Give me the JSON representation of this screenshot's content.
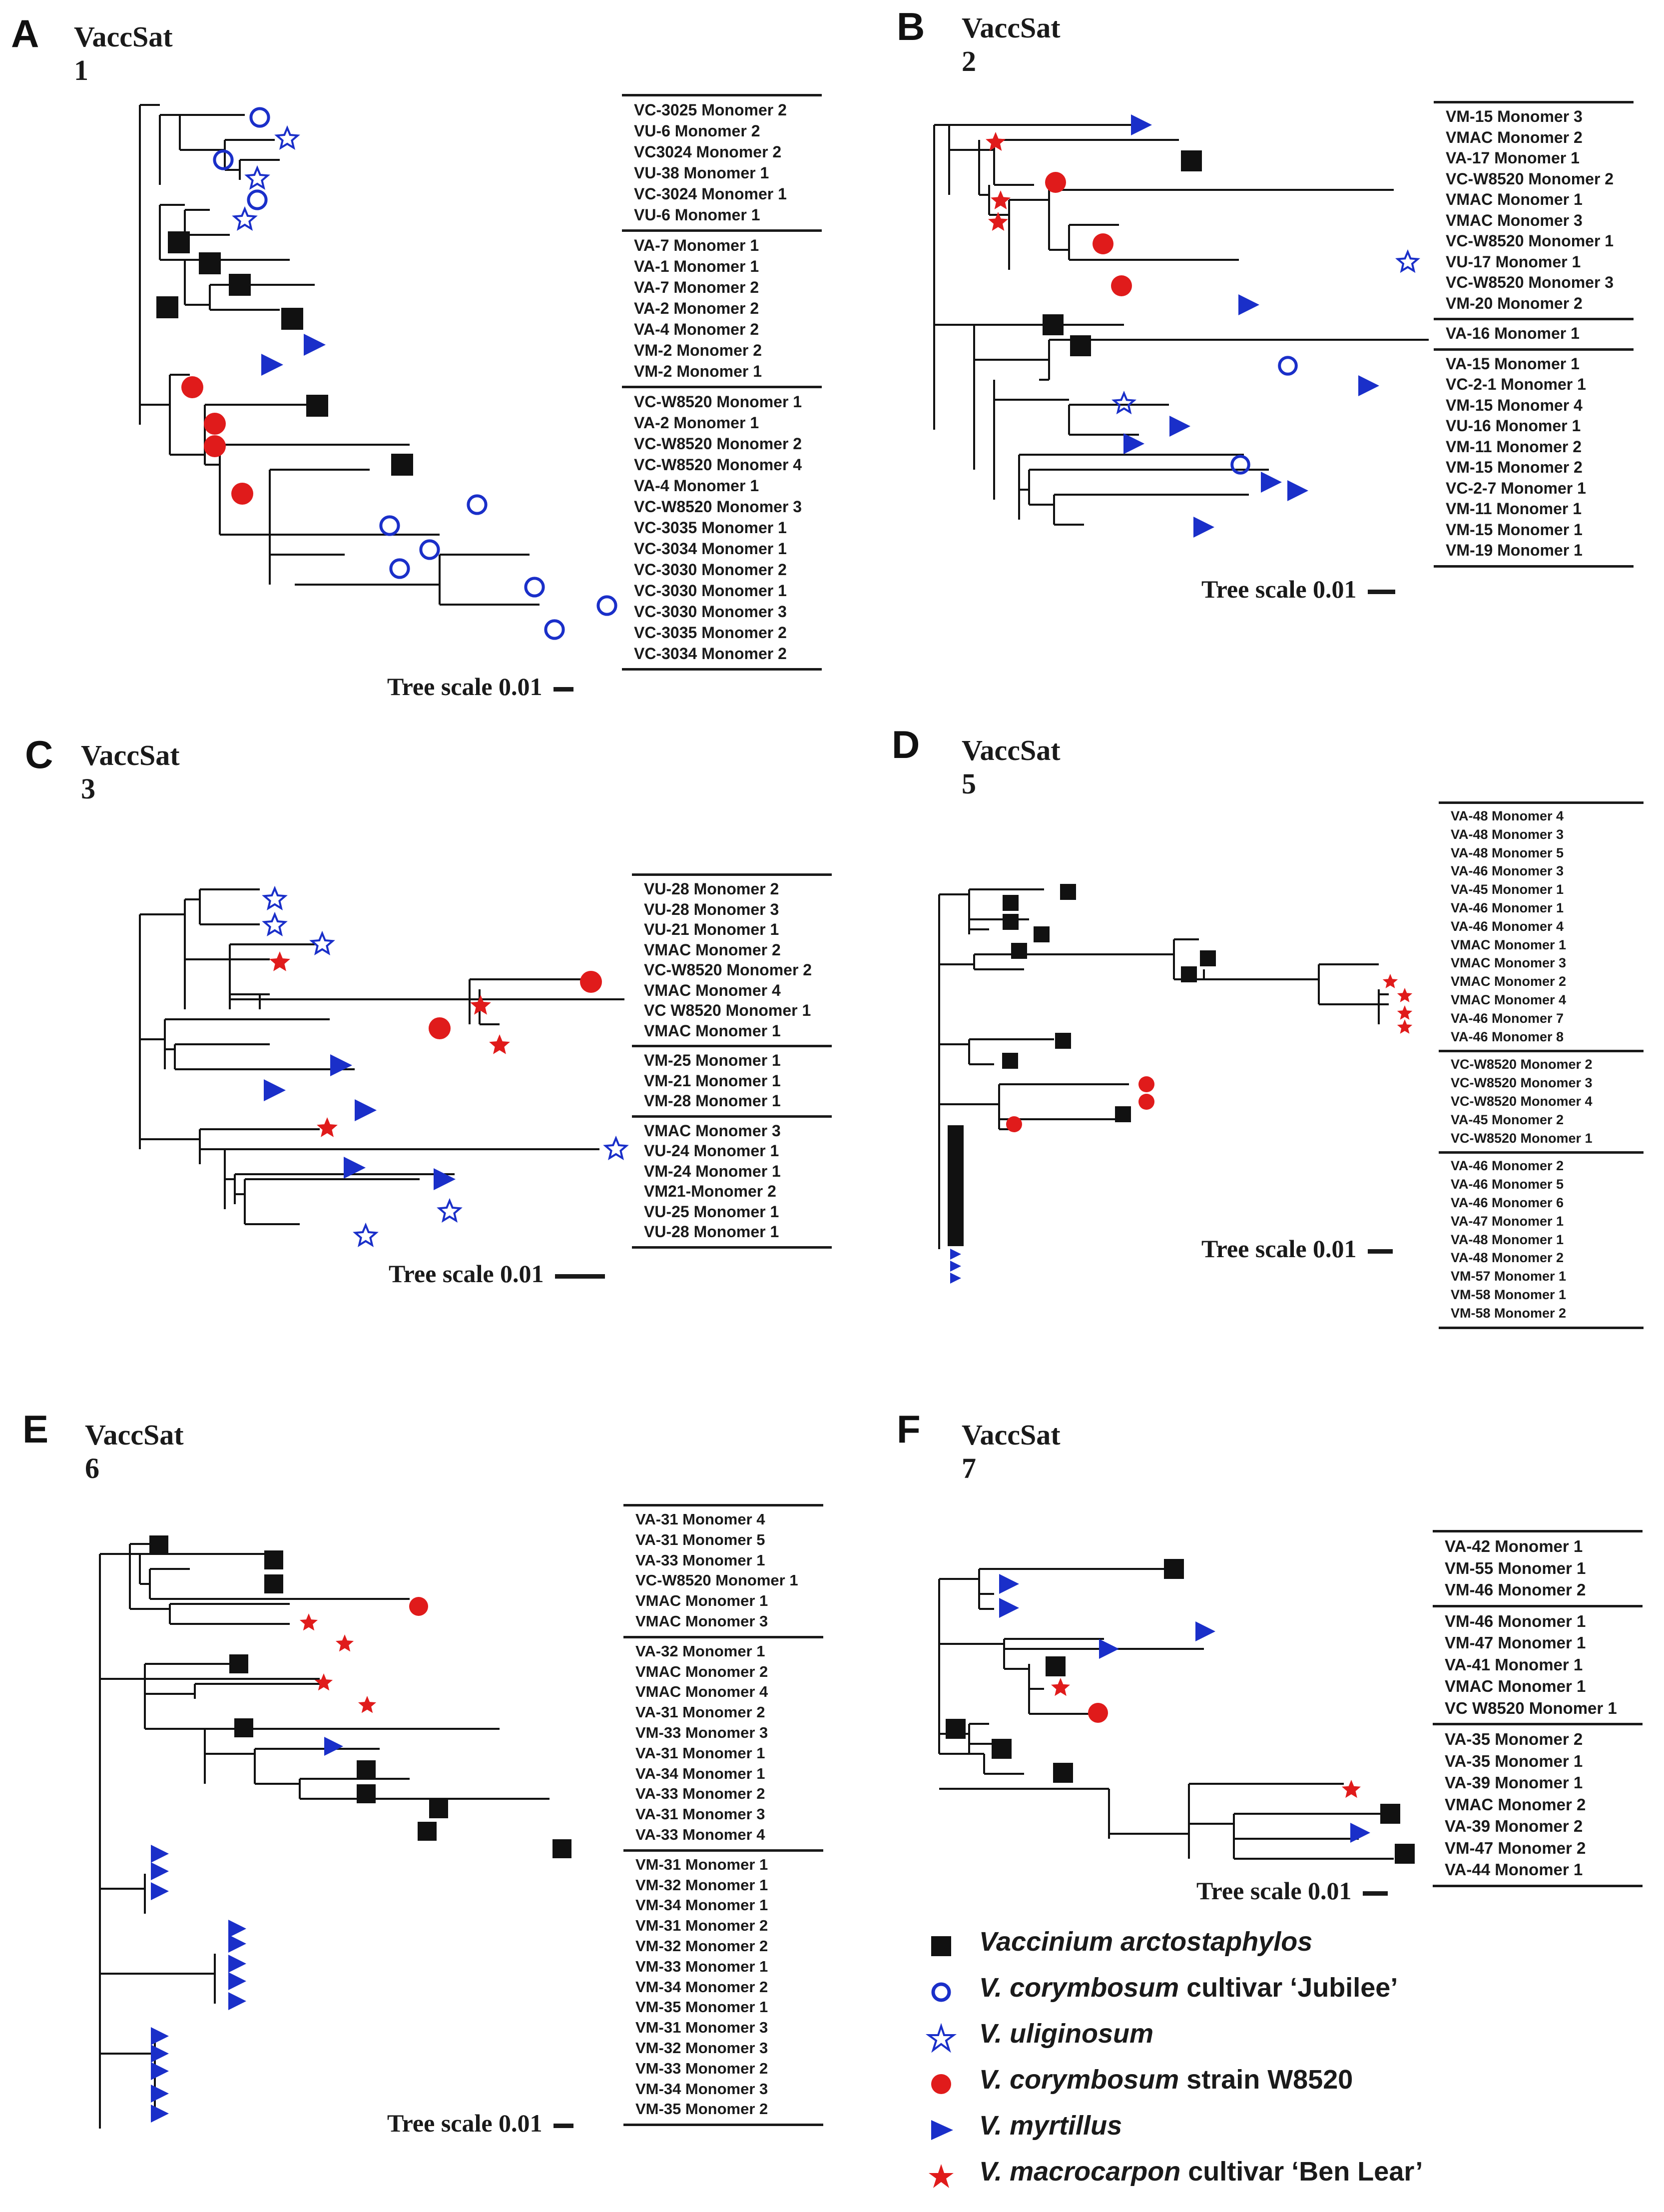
{
  "legend": [
    {
      "symbol": "square",
      "color": "#111111",
      "species": "Vaccinium arctostaphylos",
      "suffix": ""
    },
    {
      "symbol": "circle",
      "color": "#1a2fc9",
      "species": "V. corymbosum",
      "suffix": " cultivar ‘Jubilee’"
    },
    {
      "symbol": "star-open",
      "color": "#1a2fc9",
      "species": "V. uliginosum",
      "suffix": ""
    },
    {
      "symbol": "dot",
      "color": "#e01b1b",
      "species": "V. corymbosum",
      "suffix": " strain W8520"
    },
    {
      "symbol": "triangle",
      "color": "#1a2fc9",
      "species": "V. myrtillus",
      "suffix": ""
    },
    {
      "symbol": "star",
      "color": "#e01b1b",
      "species": "V. macrocarpon",
      "suffix": " cultivar ‘Ben Lear’"
    }
  ],
  "panels": [
    {
      "id": "A",
      "letter": "A",
      "title": "VaccSat 1",
      "scale_label": "Tree scale 0.01",
      "groups": [
        [
          "VC-3025 Monomer 2",
          "VU-6 Monomer 2",
          "VC3024 Monomer 2",
          "VU-38 Monomer 1",
          "VC-3024 Monomer 1",
          "VU-6 Monomer 1"
        ],
        [
          "VA-7 Monomer 1",
          "VA-1 Monomer 1",
          "VA-7 Monomer 2",
          "VA-2 Monomer 2",
          "VA-4 Monomer 2",
          "VM-2 Monomer 2",
          "VM-2 Monomer 1"
        ],
        [
          "VC-W8520 Monomer 1",
          "VA-2 Monomer 1",
          "VC-W8520 Monomer 2",
          "VC-W8520 Monomer 4",
          "VA-4 Monomer 1",
          "VC-W8520 Monomer 3",
          "VC-3035 Monomer 1",
          "VC-3034 Monomer 1",
          "VC-3030 Monomer 2",
          "VC-3030 Monomer 1",
          "VC-3030 Monomer 3",
          "VC-3035 Monomer 2",
          "VC-3034 Monomer 2"
        ]
      ]
    },
    {
      "id": "B",
      "letter": "B",
      "title": "VaccSat 2",
      "scale_label": "Tree scale 0.01",
      "groups": [
        [
          "VM-15 Monomer 3",
          "VMAC Monomer 2",
          "VA-17 Monomer 1",
          "VC-W8520 Monomer 2",
          "VMAC Monomer 1",
          "VMAC Monomer 3",
          "VC-W8520 Monomer 1",
          "VU-17 Monomer 1",
          "VC-W8520 Monomer 3",
          "VM-20 Monomer 2"
        ],
        [
          "VA-16 Monomer 1"
        ],
        [
          "VA-15 Monomer 1",
          "VC-2-1 Monomer 1",
          "VM-15 Monomer 4",
          "VU-16 Monomer 1",
          "VM-11 Monomer 2",
          "VM-15 Monomer 2",
          "VC-2-7 Monomer 1",
          "VM-11 Monomer 1",
          "VM-15 Monomer 1",
          "VM-19 Monomer 1"
        ]
      ]
    },
    {
      "id": "C",
      "letter": "C",
      "title": "VaccSat 3",
      "scale_label": "Tree scale 0.01",
      "groups": [
        [
          "VU-28 Monomer 2",
          "VU-28 Monomer 3",
          "VU-21 Monomer 1",
          "VMAC Monomer 2",
          "VC-W8520 Monomer 2",
          "VMAC Monomer 4",
          "VC W8520 Monomer 1",
          "VMAC Monomer 1"
        ],
        [
          "VM-25 Monomer 1",
          "VM-21 Monomer 1",
          "VM-28 Monomer 1"
        ],
        [
          "VMAC Monomer 3",
          "VU-24 Monomer 1",
          "VM-24 Monomer 1",
          "VM21-Monomer 2",
          "VU-25 Monomer 1",
          "VU-28 Monomer 1"
        ]
      ]
    },
    {
      "id": "D",
      "letter": "D",
      "title": "VaccSat 5",
      "scale_label": "Tree scale 0.01",
      "groups": [
        [
          "VA-48 Monomer 4",
          "VA-48 Monomer 3",
          "VA-48 Monomer 5",
          "VA-46 Monomer 3",
          "VA-45 Monomer 1",
          "VA-46 Monomer 1",
          "VA-46 Monomer 4",
          "VMAC Monomer 1",
          "VMAC Monomer 3",
          "VMAC Monomer 2",
          "VMAC Monomer 4",
          "VA-46 Monomer 7",
          "VA-46 Monomer 8"
        ],
        [
          "VC-W8520 Monomer 2",
          "VC-W8520 Monomer 3",
          "VC-W8520 Monomer 4",
          "VA-45 Monomer 2",
          "VC-W8520 Monomer 1"
        ],
        [
          "VA-46 Monomer 2",
          "VA-46 Monomer 5",
          "VA-46 Monomer 6",
          "VA-47 Monomer 1",
          "VA-48 Monomer 1",
          "VA-48 Monomer 2",
          "VM-57 Monomer 1",
          "VM-58 Monomer 1",
          "VM-58 Monomer 2"
        ]
      ]
    },
    {
      "id": "E",
      "letter": "E",
      "title": "VaccSat 6",
      "scale_label": "Tree scale 0.01",
      "groups": [
        [
          "VA-31 Monomer 4",
          "VA-31 Monomer 5",
          "VA-33 Monomer 1",
          "VC-W8520 Monomer 1",
          "VMAC Monomer 1",
          "VMAC Monomer 3"
        ],
        [
          "VA-32 Monomer 1",
          "VMAC Monomer 2",
          "VMAC Monomer 4",
          "VA-31 Monomer 2",
          "VM-33 Monomer 3",
          "VA-31 Monomer 1",
          "VA-34 Monomer 1",
          "VA-33 Monomer 2",
          "VA-31 Monomer 3",
          "VA-33 Monomer 4"
        ],
        [
          "VM-31 Monomer 1",
          "VM-32 Monomer 1",
          "VM-34 Monomer 1",
          "VM-31 Monomer 2",
          "VM-32 Monomer 2",
          "VM-33 Monomer 1",
          "VM-34 Monomer 2",
          "VM-35 Monomer 1",
          "VM-31 Monomer 3",
          "VM-32 Monomer 3",
          "VM-33 Monomer 2",
          "VM-34 Monomer 3",
          "VM-35 Monomer 2"
        ]
      ]
    },
    {
      "id": "F",
      "letter": "F",
      "title": "VaccSat 7",
      "scale_label": "Tree scale 0.01",
      "groups": [
        [
          "VA-42 Monomer 1",
          "VM-55 Monomer 1",
          "VM-46 Monomer 2"
        ],
        [
          "VM-46 Monomer 1",
          "VM-47 Monomer 1",
          "VA-41 Monomer 1",
          "VMAC Monomer 1",
          "VC W8520 Monomer 1"
        ],
        [
          "VA-35 Monomer 2",
          "VA-35 Monomer 1",
          "VA-39 Monomer 1",
          "VMAC Monomer 2",
          "VA-39 Monomer 2",
          "VM-47 Monomer 2",
          "VA-44 Monomer 1"
        ]
      ]
    }
  ]
}
